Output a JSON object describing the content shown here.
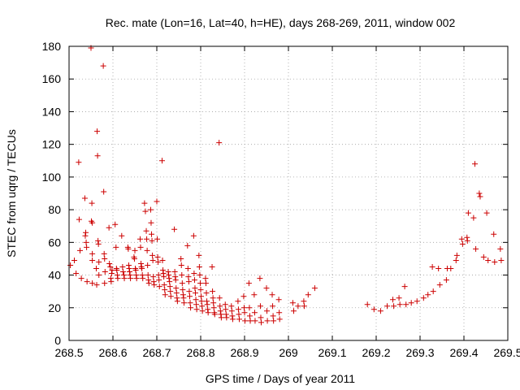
{
  "chart_data": {
    "type": "scatter",
    "title": "Rec. mate (Lon=16, Lat=40, h=HE), days 268-269, 2011, window 002",
    "xlabel": "GPS time / Days of year 2011",
    "ylabel": "STEC from uqrg / TECUs",
    "xlim": [
      268.5,
      269.5
    ],
    "ylim": [
      0,
      180
    ],
    "xticks": [
      268.5,
      268.6,
      268.7,
      268.8,
      268.9,
      269.0,
      269.1,
      269.2,
      269.3,
      269.4,
      269.5
    ],
    "xtick_labels": [
      "268.5",
      "268.6",
      "268.7",
      "268.8",
      "268.9",
      "269",
      "269.1",
      "269.2",
      "269.3",
      "269.4",
      "269.5"
    ],
    "yticks": [
      0,
      20,
      40,
      60,
      80,
      100,
      120,
      140,
      160,
      180
    ],
    "ytick_labels": [
      "0",
      "20",
      "40",
      "60",
      "80",
      "100",
      "120",
      "140",
      "160",
      "180"
    ],
    "grid": true,
    "marker": "+",
    "color": "#cc0000",
    "points": [
      [
        268.503,
        46
      ],
      [
        268.512,
        49
      ],
      [
        268.516,
        41
      ],
      [
        268.522,
        109
      ],
      [
        268.523,
        74
      ],
      [
        268.525,
        55
      ],
      [
        268.528,
        38
      ],
      [
        268.536,
        87
      ],
      [
        268.537,
        64
      ],
      [
        268.538,
        66
      ],
      [
        268.539,
        60
      ],
      [
        268.54,
        57
      ],
      [
        268.541,
        36
      ],
      [
        268.55,
        179
      ],
      [
        268.551,
        73
      ],
      [
        268.552,
        84
      ],
      [
        268.553,
        72
      ],
      [
        268.553,
        53
      ],
      [
        268.553,
        49
      ],
      [
        268.553,
        35
      ],
      [
        268.562,
        44
      ],
      [
        268.563,
        34
      ],
      [
        268.564,
        128
      ],
      [
        268.565,
        113
      ],
      [
        268.566,
        61
      ],
      [
        268.567,
        59
      ],
      [
        268.568,
        48
      ],
      [
        268.568,
        40
      ],
      [
        268.578,
        168
      ],
      [
        268.579,
        91
      ],
      [
        268.58,
        53
      ],
      [
        268.581,
        50
      ],
      [
        268.581,
        35
      ],
      [
        268.582,
        42
      ],
      [
        268.591,
        69
      ],
      [
        268.592,
        47
      ],
      [
        268.594,
        45
      ],
      [
        268.595,
        38
      ],
      [
        268.596,
        36
      ],
      [
        268.597,
        41
      ],
      [
        268.598,
        43
      ],
      [
        268.605,
        71
      ],
      [
        268.607,
        57
      ],
      [
        268.608,
        44
      ],
      [
        268.609,
        43
      ],
      [
        268.61,
        40
      ],
      [
        268.611,
        38
      ],
      [
        268.62,
        64
      ],
      [
        268.622,
        45
      ],
      [
        268.623,
        42
      ],
      [
        268.625,
        40
      ],
      [
        268.626,
        38
      ],
      [
        268.634,
        57
      ],
      [
        268.635,
        56
      ],
      [
        268.636,
        46
      ],
      [
        268.637,
        44
      ],
      [
        268.638,
        42
      ],
      [
        268.639,
        40
      ],
      [
        268.64,
        38
      ],
      [
        268.648,
        51
      ],
      [
        268.649,
        50
      ],
      [
        268.65,
        55
      ],
      [
        268.651,
        44
      ],
      [
        268.652,
        43
      ],
      [
        268.653,
        40
      ],
      [
        268.654,
        38
      ],
      [
        268.662,
        62
      ],
      [
        268.663,
        57
      ],
      [
        268.664,
        47
      ],
      [
        268.665,
        45
      ],
      [
        268.666,
        44
      ],
      [
        268.667,
        40
      ],
      [
        268.668,
        38
      ],
      [
        268.672,
        84
      ],
      [
        268.674,
        79
      ],
      [
        268.676,
        67
      ],
      [
        268.677,
        62
      ],
      [
        268.678,
        55
      ],
      [
        268.679,
        46
      ],
      [
        268.68,
        40
      ],
      [
        268.681,
        37
      ],
      [
        268.682,
        35
      ],
      [
        268.686,
        80
      ],
      [
        268.687,
        72
      ],
      [
        268.688,
        65
      ],
      [
        268.689,
        61
      ],
      [
        268.69,
        52
      ],
      [
        268.691,
        49
      ],
      [
        268.692,
        39
      ],
      [
        268.693,
        36
      ],
      [
        268.694,
        34
      ],
      [
        268.7,
        85
      ],
      [
        268.701,
        62
      ],
      [
        268.702,
        51
      ],
      [
        268.703,
        48
      ],
      [
        268.704,
        40
      ],
      [
        268.705,
        37
      ],
      [
        268.706,
        33
      ],
      [
        268.712,
        110
      ],
      [
        268.713,
        49
      ],
      [
        268.714,
        43
      ],
      [
        268.715,
        41
      ],
      [
        268.716,
        39
      ],
      [
        268.717,
        34
      ],
      [
        268.718,
        31
      ],
      [
        268.719,
        28
      ],
      [
        268.726,
        42
      ],
      [
        268.727,
        40
      ],
      [
        268.728,
        38
      ],
      [
        268.729,
        36
      ],
      [
        268.73,
        33
      ],
      [
        268.731,
        30
      ],
      [
        268.732,
        27
      ],
      [
        268.74,
        68
      ],
      [
        268.741,
        42
      ],
      [
        268.742,
        39
      ],
      [
        268.743,
        37
      ],
      [
        268.744,
        32
      ],
      [
        268.745,
        29
      ],
      [
        268.746,
        26
      ],
      [
        268.747,
        24
      ],
      [
        268.755,
        50
      ],
      [
        268.756,
        46
      ],
      [
        268.757,
        40
      ],
      [
        268.758,
        35
      ],
      [
        268.759,
        31
      ],
      [
        268.76,
        28
      ],
      [
        268.761,
        26
      ],
      [
        268.762,
        23
      ],
      [
        268.77,
        58
      ],
      [
        268.771,
        44
      ],
      [
        268.772,
        39
      ],
      [
        268.773,
        36
      ],
      [
        268.774,
        30
      ],
      [
        268.775,
        27
      ],
      [
        268.776,
        23
      ],
      [
        268.777,
        20
      ],
      [
        268.784,
        64
      ],
      [
        268.785,
        41
      ],
      [
        268.786,
        37
      ],
      [
        268.787,
        32
      ],
      [
        268.788,
        29
      ],
      [
        268.789,
        25
      ],
      [
        268.79,
        22
      ],
      [
        268.791,
        19
      ],
      [
        268.796,
        52
      ],
      [
        268.797,
        45
      ],
      [
        268.798,
        40
      ],
      [
        268.799,
        35
      ],
      [
        268.8,
        31
      ],
      [
        268.801,
        27
      ],
      [
        268.802,
        24
      ],
      [
        268.803,
        21
      ],
      [
        268.804,
        18
      ],
      [
        268.811,
        38
      ],
      [
        268.812,
        35
      ],
      [
        268.813,
        29
      ],
      [
        268.814,
        24
      ],
      [
        268.815,
        22
      ],
      [
        268.816,
        19
      ],
      [
        268.817,
        17
      ],
      [
        268.826,
        45
      ],
      [
        268.827,
        30
      ],
      [
        268.828,
        26
      ],
      [
        268.829,
        23
      ],
      [
        268.83,
        20
      ],
      [
        268.831,
        17
      ],
      [
        268.832,
        16
      ],
      [
        268.842,
        121
      ],
      [
        268.843,
        26
      ],
      [
        268.844,
        21
      ],
      [
        268.845,
        18
      ],
      [
        268.846,
        16
      ],
      [
        268.847,
        14
      ],
      [
        268.856,
        22
      ],
      [
        268.857,
        19
      ],
      [
        268.858,
        16
      ],
      [
        268.859,
        14
      ],
      [
        268.87,
        21
      ],
      [
        268.871,
        18
      ],
      [
        268.872,
        15
      ],
      [
        268.873,
        13
      ],
      [
        268.885,
        24
      ],
      [
        268.886,
        19
      ],
      [
        268.887,
        16
      ],
      [
        268.888,
        13
      ],
      [
        268.898,
        27
      ],
      [
        268.899,
        20
      ],
      [
        268.9,
        17
      ],
      [
        268.901,
        12
      ],
      [
        268.91,
        35
      ],
      [
        268.911,
        20
      ],
      [
        268.912,
        15
      ],
      [
        268.913,
        12
      ],
      [
        268.922,
        28
      ],
      [
        268.923,
        17
      ],
      [
        268.924,
        12
      ],
      [
        268.935,
        38
      ],
      [
        268.936,
        21
      ],
      [
        268.937,
        14
      ],
      [
        268.938,
        11
      ],
      [
        268.95,
        32
      ],
      [
        268.951,
        18
      ],
      [
        268.952,
        12
      ],
      [
        268.963,
        28
      ],
      [
        268.964,
        21
      ],
      [
        268.965,
        15
      ],
      [
        268.966,
        12
      ],
      [
        268.978,
        25
      ],
      [
        268.979,
        17
      ],
      [
        268.98,
        13
      ],
      [
        269.01,
        23
      ],
      [
        269.012,
        18
      ],
      [
        269.022,
        21
      ],
      [
        269.035,
        24
      ],
      [
        269.036,
        21
      ],
      [
        269.045,
        28
      ],
      [
        269.06,
        32
      ],
      [
        269.18,
        22
      ],
      [
        269.195,
        19
      ],
      [
        269.21,
        18
      ],
      [
        269.225,
        21
      ],
      [
        269.238,
        25
      ],
      [
        269.24,
        21
      ],
      [
        269.252,
        26
      ],
      [
        269.254,
        22
      ],
      [
        269.265,
        33
      ],
      [
        269.268,
        22
      ],
      [
        269.28,
        23
      ],
      [
        269.293,
        24
      ],
      [
        269.308,
        26
      ],
      [
        269.318,
        28
      ],
      [
        269.328,
        45
      ],
      [
        269.33,
        30
      ],
      [
        269.342,
        44
      ],
      [
        269.345,
        34
      ],
      [
        269.36,
        37
      ],
      [
        269.362,
        44
      ],
      [
        269.37,
        44
      ],
      [
        269.382,
        49
      ],
      [
        269.384,
        52
      ],
      [
        269.395,
        62
      ],
      [
        269.397,
        59
      ],
      [
        269.407,
        63
      ],
      [
        269.408,
        61
      ],
      [
        269.41,
        78
      ],
      [
        269.422,
        75
      ],
      [
        269.425,
        108
      ],
      [
        269.427,
        56
      ],
      [
        269.435,
        90
      ],
      [
        269.437,
        88
      ],
      [
        269.445,
        51
      ],
      [
        269.452,
        78
      ],
      [
        269.455,
        49
      ],
      [
        269.468,
        65
      ],
      [
        269.47,
        48
      ],
      [
        269.483,
        56
      ],
      [
        269.485,
        49
      ]
    ]
  }
}
